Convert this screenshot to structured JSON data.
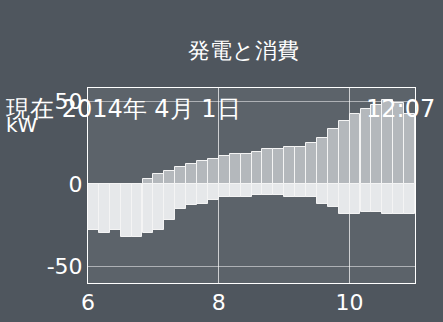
{
  "header": {
    "label": "現在",
    "date": "2014年 4月 1日",
    "time": "12:07"
  },
  "chart_data": {
    "type": "bar",
    "title": "発電と消費",
    "y_label": "kW",
    "stacked": true,
    "grid": true,
    "x": [
      6.083,
      6.25,
      6.417,
      6.583,
      6.75,
      6.917,
      7.083,
      7.25,
      7.417,
      7.583,
      7.75,
      7.917,
      8.083,
      8.25,
      8.417,
      8.583,
      8.75,
      8.917,
      9.083,
      9.25,
      9.417,
      9.583,
      9.75,
      9.917,
      10.083,
      10.25,
      10.417,
      10.583,
      10.75,
      10.917
    ],
    "series": [
      {
        "color": "#b4b8bc",
        "values": [
          0,
          0,
          0,
          0,
          0,
          3,
          6,
          8,
          10,
          12,
          14,
          15,
          17,
          18,
          18,
          19,
          21,
          21,
          22,
          22,
          25,
          28,
          33,
          38,
          42,
          45,
          48,
          51,
          49,
          42
        ]
      },
      {
        "color": "#e6e8ea",
        "values": [
          -28,
          -30,
          -28,
          -32,
          -32,
          -30,
          -28,
          -22,
          -15,
          -13,
          -12,
          -10,
          -8,
          -8,
          -8,
          -7,
          -7,
          -7,
          -8,
          -8,
          -8,
          -12,
          -14,
          -18,
          -18,
          -17,
          -17,
          -18,
          -18,
          -18
        ]
      }
    ],
    "xlim": [
      6,
      11
    ],
    "xticks": [
      6,
      8,
      10
    ],
    "ylim": [
      -60,
      58
    ],
    "yticks": [
      -50,
      0,
      50
    ]
  }
}
